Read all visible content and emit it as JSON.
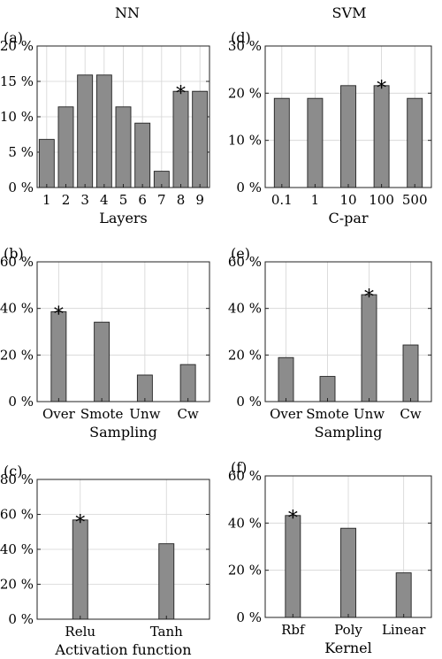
{
  "columns": [
    "NN",
    "SVM"
  ],
  "colors": {
    "bar": "#8c8c8c",
    "bar_edge": "#222222",
    "grid": "#d4d4d4",
    "frame": "#222222"
  },
  "chart_data": [
    {
      "id": "a",
      "panel_label": "(a)",
      "type": "bar",
      "xlabel": "Layers",
      "ylabel": "",
      "categories": [
        "1",
        "2",
        "3",
        "4",
        "5",
        "6",
        "7",
        "8",
        "9"
      ],
      "values": [
        6.8,
        11.4,
        15.9,
        15.9,
        11.4,
        9.1,
        2.3,
        13.6,
        13.6
      ],
      "ylim": [
        0,
        20
      ],
      "yticks": [
        0,
        5,
        10,
        15,
        20
      ],
      "ytick_labels": [
        "0 %",
        "5 %",
        "10 %",
        "15 %",
        "20 %"
      ],
      "best": "8",
      "best_marker": "*",
      "grid": true
    },
    {
      "id": "d",
      "panel_label": "(d)",
      "type": "bar",
      "xlabel": "C-par",
      "ylabel": "",
      "categories": [
        "0.1",
        "1",
        "10",
        "100",
        "500"
      ],
      "values": [
        18.9,
        18.9,
        21.6,
        21.6,
        18.9
      ],
      "ylim": [
        0,
        30
      ],
      "yticks": [
        0,
        10,
        20,
        30
      ],
      "ytick_labels": [
        "0 %",
        "10 %",
        "20 %",
        "30 %"
      ],
      "best": "100",
      "best_marker": "*",
      "grid": true
    },
    {
      "id": "b",
      "panel_label": "(b)",
      "type": "bar",
      "xlabel": "Sampling",
      "ylabel": "",
      "categories": [
        "Over",
        "Smote",
        "Unw",
        "Cw"
      ],
      "values": [
        38.6,
        34.1,
        11.4,
        15.9
      ],
      "ylim": [
        0,
        60
      ],
      "yticks": [
        0,
        20,
        40,
        60
      ],
      "ytick_labels": [
        "0 %",
        "20 %",
        "40 %",
        "60 %"
      ],
      "best": "Over",
      "best_marker": "*",
      "grid": true
    },
    {
      "id": "e",
      "panel_label": "(e)",
      "type": "bar",
      "xlabel": "Sampling",
      "ylabel": "",
      "categories": [
        "Over",
        "Smote",
        "Unw",
        "Cw"
      ],
      "values": [
        18.9,
        10.8,
        45.9,
        24.3
      ],
      "ylim": [
        0,
        60
      ],
      "yticks": [
        0,
        20,
        40,
        60
      ],
      "ytick_labels": [
        "0 %",
        "20 %",
        "40 %",
        "60 %"
      ],
      "best": "Unw",
      "best_marker": "*",
      "grid": true
    },
    {
      "id": "c",
      "panel_label": "(c)",
      "type": "bar",
      "xlabel": "Activation function",
      "ylabel": "",
      "categories": [
        "Relu",
        "Tanh"
      ],
      "values": [
        56.8,
        43.2
      ],
      "ylim": [
        0,
        80
      ],
      "yticks": [
        0,
        20,
        40,
        60,
        80
      ],
      "ytick_labels": [
        "0 %",
        "20 %",
        "40 %",
        "60 %",
        "80 %"
      ],
      "best": "Relu",
      "best_marker": "*",
      "grid": true
    },
    {
      "id": "f",
      "panel_label": "(f)",
      "type": "bar",
      "xlabel": "Kernel",
      "ylabel": "",
      "categories": [
        "Rbf",
        "Poly",
        "Linear"
      ],
      "values": [
        43.2,
        37.8,
        18.9
      ],
      "ylim": [
        0,
        60
      ],
      "yticks": [
        0,
        20,
        40,
        60
      ],
      "ytick_labels": [
        "0 %",
        "20 %",
        "40 %",
        "60 %"
      ],
      "best": "Rbf",
      "best_marker": "*",
      "grid": true
    }
  ]
}
